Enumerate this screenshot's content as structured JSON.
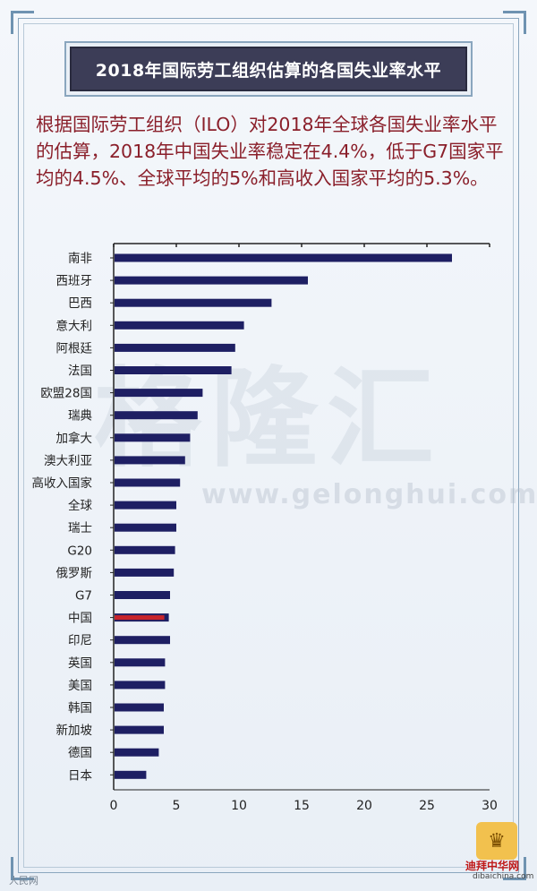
{
  "header": {
    "title": "2018年国际劳工组织估算的各国失业率水平"
  },
  "description": "根据国际劳工组织（ILO）对2018年全球各国失业率水平的估算，2018年中国失业率稳定在4.4%，低于G7国家平均的4.5%、全球平均的5%和高收入国家平均的5.3%。",
  "watermark": {
    "big": "格隆汇",
    "url": "www.gelonghui.com"
  },
  "footer": {
    "source": "人民网",
    "logo_text": "迪拜中华网",
    "logo_sub": "dibaichina.com"
  },
  "colors": {
    "bar": "#1e1f63",
    "highlight": "#c8242b",
    "text": "#222222",
    "description": "#8a1f2a",
    "title_bg": "#3c3d57"
  },
  "chart_data": {
    "type": "bar",
    "orientation": "horizontal",
    "title": "",
    "xlabel": "",
    "ylabel": "",
    "xlim": [
      0,
      30
    ],
    "xticks": [
      0,
      5,
      10,
      15,
      20,
      25,
      30
    ],
    "categories": [
      "南非",
      "西班牙",
      "巴西",
      "意大利",
      "阿根廷",
      "法国",
      "欧盟28国",
      "瑞典",
      "加拿大",
      "澳大利亚",
      "高收入国家",
      "全球",
      "瑞士",
      "G20",
      "俄罗斯",
      "G7",
      "中国",
      "印尼",
      "英国",
      "美国",
      "韩国",
      "新加坡",
      "德国",
      "日本"
    ],
    "values": [
      27.0,
      15.5,
      12.6,
      10.4,
      9.7,
      9.4,
      7.1,
      6.7,
      6.1,
      5.7,
      5.3,
      5.0,
      5.0,
      4.9,
      4.8,
      4.5,
      4.4,
      4.5,
      4.1,
      4.1,
      4.0,
      4.0,
      3.6,
      2.6
    ],
    "highlight": "中国",
    "grid": false
  }
}
